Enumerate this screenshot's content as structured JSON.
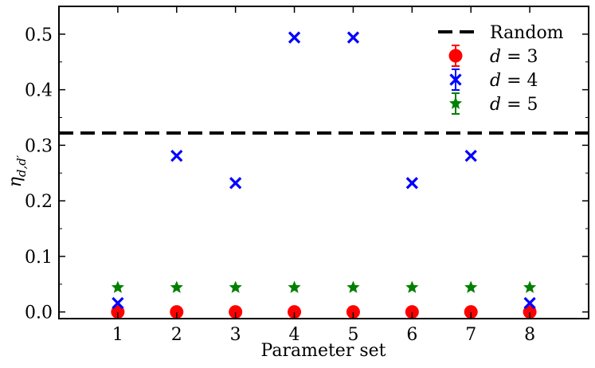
{
  "chart_data": {
    "type": "scatter",
    "title": "",
    "xlabel": "Parameter set",
    "ylabel": "η_{d,d′}",
    "x": [
      1,
      2,
      3,
      4,
      5,
      6,
      7,
      8
    ],
    "xlim": [
      0,
      9
    ],
    "ylim": [
      -0.012,
      0.55
    ],
    "xticks": [
      "1",
      "2",
      "3",
      "4",
      "5",
      "6",
      "7",
      "8"
    ],
    "yticks": [
      "0.0",
      "0.1",
      "0.2",
      "0.3",
      "0.4",
      "0.5"
    ],
    "grid": false,
    "legend_position": "top-right",
    "reference_line": {
      "name": "Random",
      "y": 0.322,
      "style": "dashed",
      "color": "#000000"
    },
    "series": [
      {
        "name": "d = 3",
        "marker": "circle",
        "color": "#ff0000",
        "values": [
          0.0,
          0.0,
          0.0,
          0.0,
          0.0,
          0.0,
          0.0,
          0.0
        ]
      },
      {
        "name": "d = 4",
        "marker": "x",
        "color": "#0000ff",
        "values": [
          0.016,
          0.281,
          0.232,
          0.494,
          0.494,
          0.232,
          0.281,
          0.016
        ]
      },
      {
        "name": "d = 5",
        "marker": "star",
        "color": "#008000",
        "values": [
          0.044,
          0.044,
          0.044,
          0.044,
          0.044,
          0.044,
          0.044,
          0.044
        ]
      }
    ],
    "legend": [
      {
        "label": "Random",
        "var": "",
        "eq": ""
      },
      {
        "label": "",
        "var": "d",
        "eq": " = 3"
      },
      {
        "label": "",
        "var": "d",
        "eq": " = 4"
      },
      {
        "label": "",
        "var": "d",
        "eq": " = 5"
      }
    ]
  }
}
